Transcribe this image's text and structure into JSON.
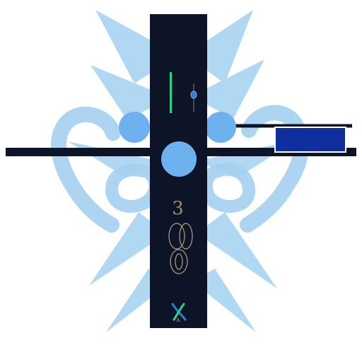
{
  "glyphs": {
    "upper_numeral": "3",
    "lower_symbol": "X",
    "tiny_mark": "ᴬ"
  },
  "colors": {
    "background": "#ffffff",
    "column": "#0d1428",
    "bar": "#0d1428",
    "rays": "#a9d4f2",
    "swirls": "#a5d0f0",
    "circles": "#6db1ee",
    "panel": "#0f2ea0",
    "panel_border": "#ffffff",
    "accent_green": "#2fd08e",
    "accent_blue": "#2b7fd8",
    "ornament": "#9a9070"
  },
  "icons": {
    "green_indicator": "vertical-line-icon",
    "blue_knob": "pin-icon",
    "ornaments": "oval-ornament-icon",
    "x_mark": "cross-icon"
  }
}
